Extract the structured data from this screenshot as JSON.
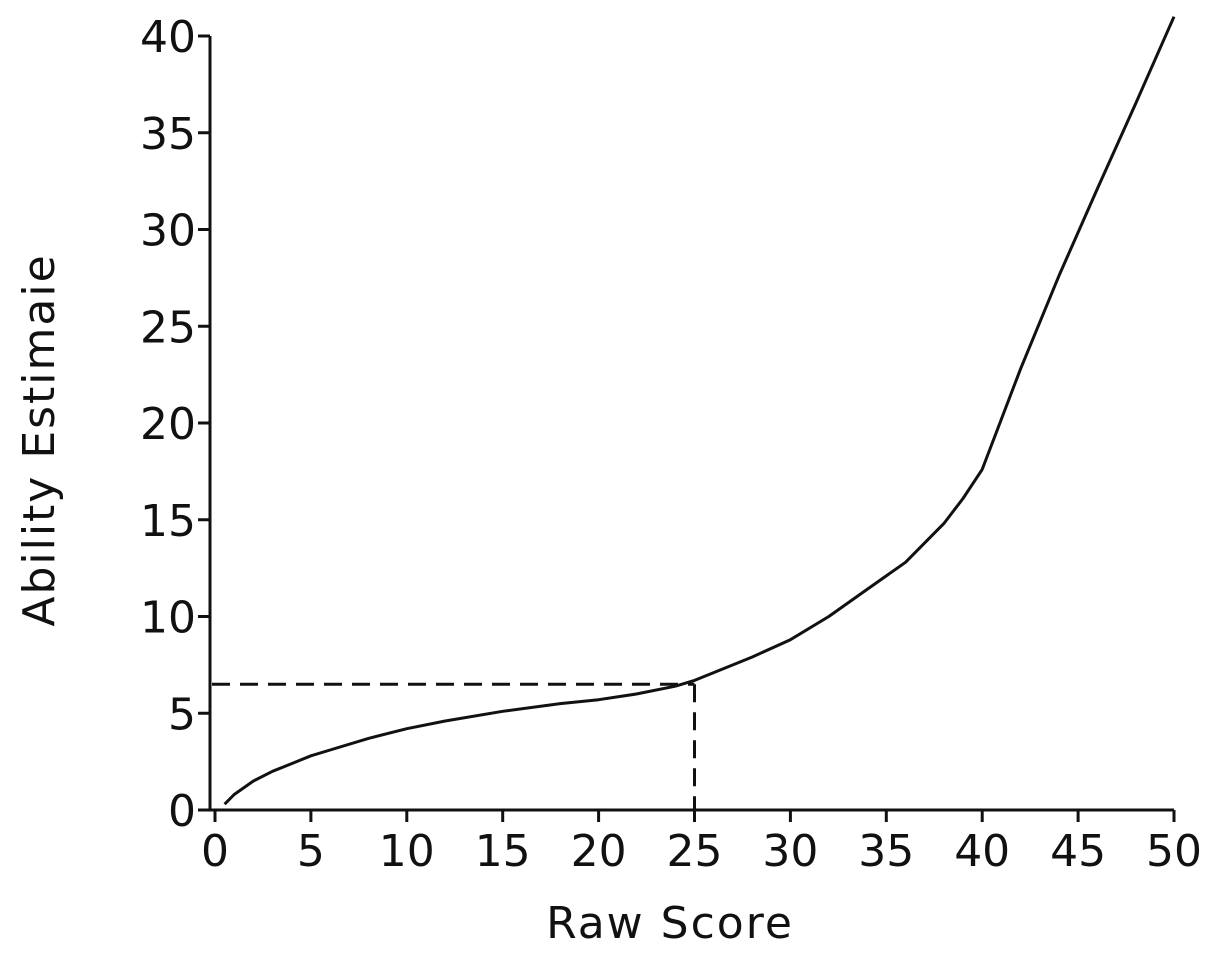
{
  "chart_data": {
    "type": "line",
    "xlabel": "Raw Score",
    "ylabel": "Ability Estimaie",
    "xlim": [
      0,
      50
    ],
    "ylim": [
      0,
      40
    ],
    "x_ticks": [
      "0",
      "5",
      "10",
      "15",
      "20",
      "25",
      "30",
      "35",
      "40",
      "45",
      "50"
    ],
    "y_ticks": [
      "0",
      "5",
      "10",
      "15",
      "20",
      "25",
      "30",
      "35",
      "40"
    ],
    "grid": false,
    "series": [
      {
        "x": [
          0.5,
          1,
          2,
          3,
          4,
          5,
          6,
          8,
          10,
          12,
          15,
          18,
          20,
          22,
          24,
          25,
          26,
          28,
          30,
          32,
          34,
          36,
          38,
          39,
          40,
          41,
          42,
          44,
          46,
          48,
          50
        ],
        "y": [
          0.3,
          0.8,
          1.5,
          2.0,
          2.4,
          2.8,
          3.1,
          3.7,
          4.2,
          4.6,
          5.1,
          5.5,
          5.7,
          6.0,
          6.4,
          6.7,
          7.1,
          7.9,
          8.8,
          10.0,
          11.4,
          12.8,
          14.8,
          16.1,
          17.6,
          20.2,
          22.8,
          27.6,
          32.1,
          36.5,
          41.0
        ],
        "color": "#111111"
      }
    ],
    "reference_point": {
      "x": 25,
      "y": 6.5
    }
  }
}
